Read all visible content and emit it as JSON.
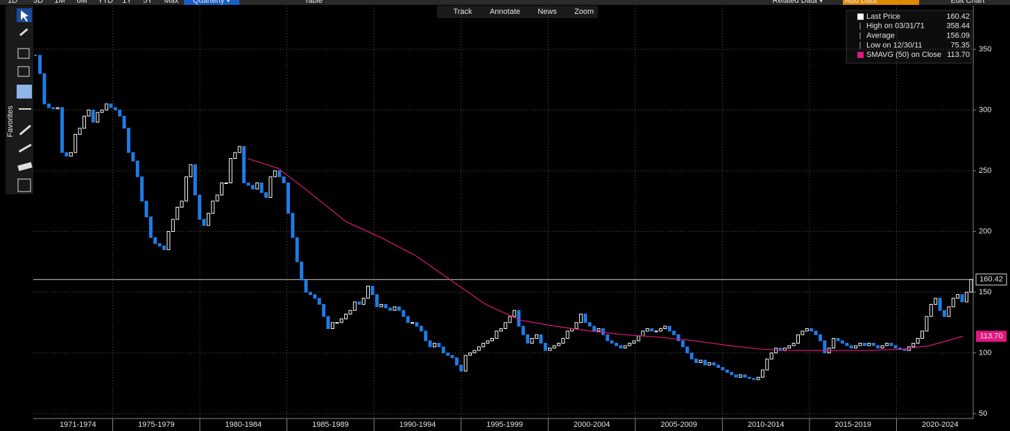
{
  "toolbar": {
    "left": [
      "1D",
      "3D",
      "1M",
      "6M",
      "YTD",
      "1Y",
      "5Y",
      "Max"
    ],
    "period": "Quarterly ▾",
    "table": "Table",
    "center": [
      "Track",
      "Annotate",
      "News",
      "Zoom"
    ],
    "related": "Related Data ▾",
    "add_data": "Add Data",
    "edit": "Edit Chart",
    "sidebar": "Favorites"
  },
  "chart_data": {
    "type": "candlestick",
    "series": [
      {
        "name": "Last Price",
        "up_color": "#ffffff",
        "down_color": "#1e7ce6",
        "values": [
          345,
          330,
          305,
          302,
          301,
          302,
          265,
          262,
          265,
          280,
          285,
          295,
          300,
          290,
          298,
          300,
          305,
          302,
          300,
          295,
          285,
          265,
          258,
          245,
          225,
          212,
          195,
          190,
          188,
          185,
          200,
          210,
          220,
          225,
          245,
          255,
          230,
          210,
          205,
          215,
          225,
          230,
          240,
          240,
          260,
          265,
          270,
          240,
          238,
          235,
          240,
          232,
          228,
          245,
          250,
          245,
          240,
          215,
          195,
          175,
          160,
          150,
          148,
          145,
          140,
          130,
          120,
          125,
          125,
          128,
          132,
          135,
          142,
          140,
          145,
          155,
          148,
          138,
          140,
          137,
          135,
          138,
          135,
          130,
          125,
          125,
          122,
          118,
          110,
          105,
          108,
          105,
          100,
          98,
          96,
          90,
          85,
          98,
          100,
          102,
          105,
          108,
          110,
          112,
          118,
          120,
          125,
          130,
          135,
          122,
          115,
          108,
          112,
          115,
          108,
          102,
          104,
          106,
          108,
          112,
          118,
          120,
          125,
          132,
          125,
          122,
          118,
          120,
          115,
          110,
          108,
          106,
          104,
          106,
          108,
          110,
          114,
          118,
          120,
          118,
          118,
          120,
          122,
          118,
          115,
          110,
          105,
          100,
          95,
          92,
          94,
          90,
          92,
          90,
          88,
          86,
          84,
          82,
          80,
          82,
          80,
          79,
          78,
          80,
          86,
          95,
          100,
          104,
          102,
          104,
          106,
          108,
          115,
          118,
          120,
          118,
          115,
          110,
          100,
          104,
          112,
          110,
          108,
          106,
          104,
          106,
          108,
          106,
          108,
          106,
          104,
          106,
          108,
          106,
          104,
          103,
          102,
          105,
          108,
          112,
          118,
          130,
          140,
          145,
          135,
          130,
          138,
          145,
          148,
          142,
          150,
          160.42
        ]
      },
      {
        "name": "SMAVG (50)  on Close",
        "color": "#e0177f",
        "x": [
          1982.75,
          1984.5,
          1986.05,
          1988.4,
          1990.4,
          1992.4,
          1994.4,
          1996.4,
          1998.4,
          2000.4,
          2002.4,
          2004.4,
          2006.4,
          2008.4,
          2010.4,
          2012.3,
          2014.3,
          2016.3,
          2018.3,
          2020.3,
          2021.9,
          2023.8
        ],
        "values": [
          260,
          252,
          235,
          208,
          195,
          180,
          160,
          140,
          127,
          122,
          118,
          115,
          113,
          110,
          106,
          103,
          102,
          102,
          102,
          103,
          106,
          113.7
        ],
        "value_labels": [
          null,
          null,
          null,
          null,
          null,
          null,
          null,
          null,
          null,
          null,
          null,
          null,
          null,
          null,
          null,
          null,
          null,
          null,
          null,
          null,
          null,
          "113.70"
        ]
      }
    ],
    "stats": [
      {
        "label": "High on 03/31/71",
        "value": 358.44
      },
      {
        "label": "Average",
        "value": 156.09
      },
      {
        "label": "Low on 12/30/11",
        "value": 75.35
      }
    ],
    "xlim": [
      1970.44,
      2024.4
    ],
    "xticks": [
      {
        "value": 1973,
        "label": "1971-1974"
      },
      {
        "value": 1977.5,
        "label": "1975-1979"
      },
      {
        "value": 1982.5,
        "label": "1980-1984"
      },
      {
        "value": 1987.5,
        "label": "1985-1989"
      },
      {
        "value": 1992.5,
        "label": "1990-1994"
      },
      {
        "value": 1997.5,
        "label": "1995-1999"
      },
      {
        "value": 2002.5,
        "label": "2000-2004"
      },
      {
        "value": 2007.5,
        "label": "2005-2009"
      },
      {
        "value": 2012.5,
        "label": "2010-2014"
      },
      {
        "value": 2017.5,
        "label": "2015-2019"
      },
      {
        "value": 2022.5,
        "label": "2020-2024"
      }
    ],
    "xgrid": [
      1975,
      1980,
      1985,
      1990,
      1995,
      2000,
      2005,
      2010,
      2015,
      2020
    ],
    "ylim": [
      46,
      386
    ],
    "yticks": [
      50,
      100,
      150,
      200,
      250,
      300,
      350
    ],
    "grid": true
  }
}
